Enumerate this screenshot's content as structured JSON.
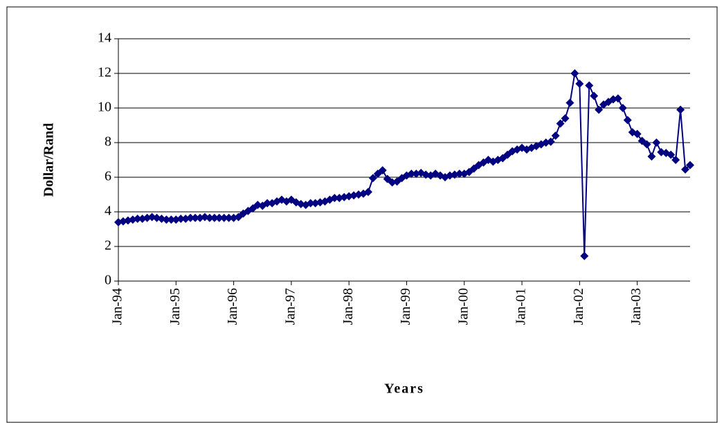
{
  "chart_data": {
    "type": "line",
    "y_label": "Dollar/Rand",
    "x_label": "Years",
    "categories": [
      "Jan-94",
      null,
      null,
      null,
      null,
      null,
      null,
      null,
      null,
      null,
      null,
      null,
      "Jan-95",
      null,
      null,
      null,
      null,
      null,
      null,
      null,
      null,
      null,
      null,
      null,
      "Jan-96",
      null,
      null,
      null,
      null,
      null,
      null,
      null,
      null,
      null,
      null,
      null,
      "Jan-97",
      null,
      null,
      null,
      null,
      null,
      null,
      null,
      null,
      null,
      null,
      null,
      "Jan-98",
      null,
      null,
      null,
      null,
      null,
      null,
      null,
      null,
      null,
      null,
      null,
      "Jan-99",
      null,
      null,
      null,
      null,
      null,
      null,
      null,
      null,
      null,
      null,
      null,
      "Jan-00",
      null,
      null,
      null,
      null,
      null,
      null,
      null,
      null,
      null,
      null,
      null,
      "Jan-01",
      null,
      null,
      null,
      null,
      null,
      null,
      null,
      null,
      null,
      null,
      null,
      "Jan-02",
      null,
      null,
      null,
      null,
      null,
      null,
      null,
      null,
      null,
      null,
      null,
      "Jan-03",
      null,
      null,
      null,
      null,
      null,
      null,
      null,
      null,
      null,
      null,
      null
    ],
    "series": [
      {
        "color": "#000080",
        "marker": "diamond",
        "values": [
          3.4,
          3.45,
          3.5,
          3.55,
          3.6,
          3.6,
          3.65,
          3.7,
          3.65,
          3.6,
          3.55,
          3.55,
          3.55,
          3.6,
          3.6,
          3.65,
          3.65,
          3.65,
          3.7,
          3.65,
          3.65,
          3.65,
          3.65,
          3.65,
          3.65,
          3.7,
          3.9,
          4.05,
          4.2,
          4.4,
          4.35,
          4.5,
          4.5,
          4.6,
          4.7,
          4.6,
          4.7,
          4.55,
          4.45,
          4.4,
          4.5,
          4.5,
          4.55,
          4.6,
          4.7,
          4.8,
          4.8,
          4.85,
          4.9,
          4.95,
          5.0,
          5.05,
          5.15,
          5.95,
          6.2,
          6.4,
          5.9,
          5.7,
          5.75,
          5.95,
          6.1,
          6.2,
          6.2,
          6.25,
          6.15,
          6.1,
          6.2,
          6.1,
          6.0,
          6.1,
          6.15,
          6.2,
          6.2,
          6.3,
          6.5,
          6.7,
          6.85,
          7.0,
          6.9,
          7.0,
          7.1,
          7.3,
          7.5,
          7.6,
          7.7,
          7.6,
          7.7,
          7.8,
          7.9,
          8.0,
          8.05,
          8.4,
          9.1,
          9.4,
          10.3,
          12.0,
          11.4,
          1.45,
          11.3,
          10.7,
          9.9,
          10.2,
          10.35,
          10.5,
          10.55,
          10.0,
          9.3,
          8.6,
          8.5,
          8.1,
          7.9,
          7.2,
          8.0,
          7.45,
          7.4,
          7.3,
          7.0,
          9.9,
          6.45,
          6.7
        ]
      }
    ],
    "ylim": [
      0,
      14
    ],
    "yticks": [
      0,
      2,
      4,
      6,
      8,
      10,
      12,
      14
    ],
    "grid": true
  }
}
